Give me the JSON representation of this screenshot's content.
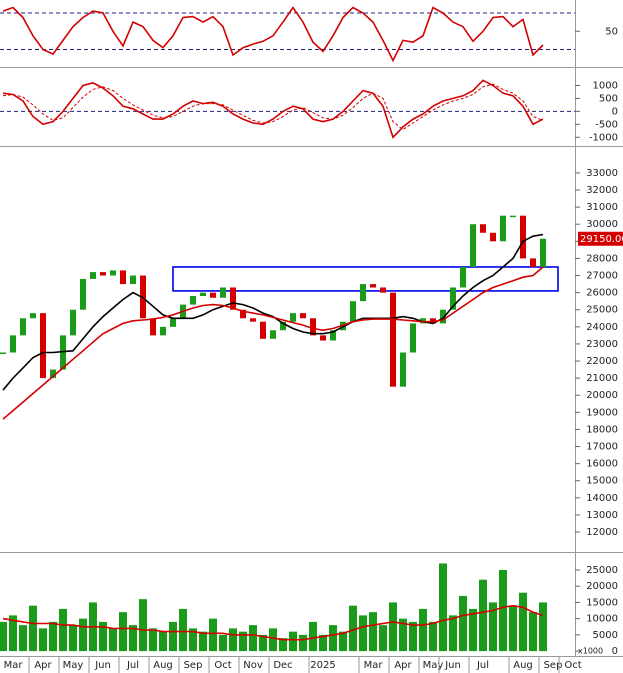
{
  "chart_data": [
    {
      "type": "line",
      "ylim": [
        12,
        82
      ],
      "yticks": [
        50
      ],
      "levels": [
        30,
        70
      ],
      "series": [
        {
          "color": "#d40000",
          "values": [
            72,
            76,
            65,
            45,
            30,
            25,
            40,
            55,
            65,
            72,
            70,
            50,
            34,
            60,
            55,
            40,
            32,
            45,
            65,
            66,
            60,
            66,
            55,
            24,
            32,
            36,
            39,
            45,
            60,
            76,
            60,
            38,
            28,
            45,
            65,
            76,
            70,
            60,
            40,
            18,
            40,
            38,
            45,
            76,
            70,
            60,
            55,
            39,
            50,
            65,
            66,
            55,
            63,
            24,
            35,
            null,
            null,
            null
          ]
        }
      ]
    },
    {
      "type": "line",
      "ylim": [
        -1260,
        1520
      ],
      "yticks": [
        1000,
        500,
        0,
        -500,
        -1000
      ],
      "levels": [
        0
      ],
      "series": [
        {
          "color": "#d40000",
          "values": [
            700,
            650,
            400,
            -200,
            -500,
            -400,
            0,
            500,
            1000,
            1100,
            900,
            600,
            200,
            100,
            -100,
            -300,
            -300,
            -100,
            200,
            400,
            300,
            350,
            200,
            -100,
            -300,
            -450,
            -500,
            -300,
            0,
            200,
            100,
            -300,
            -400,
            -300,
            0,
            400,
            800,
            700,
            200,
            -1000,
            -600,
            -300,
            -100,
            200,
            400,
            500,
            600,
            800,
            1200,
            1000,
            700,
            600,
            200,
            -500,
            -300,
            null,
            null,
            null
          ]
        },
        {
          "color": "#d40000",
          "dash": true,
          "values": [
            600,
            650,
            550,
            250,
            -100,
            -350,
            -250,
            150,
            550,
            850,
            950,
            800,
            500,
            250,
            50,
            -150,
            -250,
            -200,
            0,
            200,
            300,
            300,
            250,
            50,
            -150,
            -350,
            -450,
            -400,
            -200,
            50,
            150,
            -50,
            -250,
            -300,
            -150,
            150,
            500,
            700,
            500,
            -400,
            -700,
            -450,
            -200,
            50,
            250,
            400,
            500,
            650,
            950,
            1050,
            850,
            700,
            400,
            -200,
            -350,
            null,
            null,
            null
          ]
        }
      ]
    },
    {
      "type": "candlestick",
      "ylim": [
        10950,
        34340
      ],
      "yticks": [
        12000,
        13000,
        14000,
        15000,
        16000,
        17000,
        18000,
        19000,
        20000,
        21000,
        22000,
        23000,
        24000,
        25000,
        26000,
        27000,
        28000,
        29000,
        30000,
        31000,
        32000,
        33000
      ],
      "up_color": "#1a9c1a",
      "down_color": "#d40000",
      "values": [
        22500,
        23500,
        24500,
        24800,
        21000,
        21500,
        23500,
        25000,
        26800,
        27200,
        27000,
        27300,
        26500,
        27000,
        24500,
        23500,
        24000,
        24500,
        25300,
        25800,
        26000,
        25700,
        26300,
        25000,
        24500,
        24300,
        23300,
        23800,
        24300,
        24800,
        24500,
        23500,
        23200,
        23800,
        24300,
        25500,
        26500,
        26300,
        26000,
        20500,
        22500,
        24200,
        24500,
        24200,
        25000,
        26300,
        27500,
        30000,
        29500,
        29000,
        30500,
        30500,
        28000,
        27500,
        29150,
        null,
        null,
        null
      ],
      "series": [
        {
          "color": "#000000",
          "values": [
            20300,
            21000,
            21600,
            22200,
            22500,
            22500,
            22550,
            22600,
            23300,
            24000,
            24600,
            25100,
            25600,
            26000,
            25700,
            25200,
            24700,
            24500,
            24500,
            24500,
            24700,
            25000,
            25200,
            25400,
            25300,
            25100,
            24800,
            24600,
            24200,
            23900,
            23700,
            23600,
            23600,
            23700,
            24000,
            24300,
            24500,
            24500,
            24500,
            24500,
            24600,
            24500,
            24300,
            24200,
            24500,
            25200,
            25800,
            26300,
            26700,
            27000,
            27500,
            28000,
            29000,
            29300,
            29400,
            null,
            null,
            null
          ]
        },
        {
          "color": "#d40000",
          "values": [
            18600,
            19100,
            19600,
            20100,
            20600,
            21100,
            21600,
            22100,
            22600,
            23100,
            23600,
            23900,
            24200,
            24350,
            24400,
            24450,
            24550,
            24700,
            24900,
            25100,
            25250,
            25300,
            25250,
            25100,
            24900,
            24800,
            24700,
            24550,
            24400,
            24250,
            24100,
            23900,
            23800,
            23900,
            24100,
            24300,
            24400,
            24450,
            24450,
            24450,
            24400,
            24350,
            24300,
            24300,
            24400,
            24800,
            25200,
            25600,
            26000,
            26300,
            26500,
            26700,
            26900,
            27000,
            27500,
            null,
            null,
            null
          ]
        }
      ],
      "zone": {
        "low": 26100,
        "high": 27500,
        "start_index": 17,
        "end_index": 55.5,
        "color": "#0000ee"
      },
      "last_label": {
        "value": 29150,
        "label": "29150.00"
      }
    },
    {
      "type": "bar",
      "ylim": [
        -1200,
        29300
      ],
      "yticks": [
        0,
        5000,
        10000,
        15000,
        20000,
        25000
      ],
      "unit_label": "x1000",
      "categories": [
        null,
        "Mar",
        null,
        null,
        "Apr",
        null,
        null,
        "May",
        null,
        null,
        "Jun",
        null,
        null,
        "Jul",
        null,
        null,
        "Aug",
        null,
        null,
        "Sep",
        null,
        null,
        "Oct",
        null,
        null,
        "Nov",
        null,
        null,
        "Dec",
        null,
        null,
        null,
        "2025",
        null,
        null,
        null,
        null,
        "Mar",
        null,
        null,
        "Apr",
        null,
        null,
        "May",
        null,
        "Jun",
        null,
        null,
        "Jul",
        null,
        null,
        null,
        "Aug",
        null,
        null,
        "Sep",
        null,
        "Oct"
      ],
      "series": [
        {
          "color": "#1a9c1a",
          "values": [
            9000,
            11000,
            8000,
            14000,
            7000,
            9000,
            13000,
            8000,
            10000,
            15000,
            9000,
            7000,
            12000,
            8000,
            16000,
            7000,
            6000,
            9000,
            13000,
            7000,
            6000,
            10000,
            5000,
            7000,
            6000,
            8000,
            5000,
            7000,
            4000,
            6000,
            5000,
            9000,
            5000,
            8000,
            6000,
            14000,
            11000,
            12000,
            8000,
            15000,
            10000,
            9000,
            13000,
            9000,
            27000,
            11000,
            17000,
            13000,
            22000,
            15000,
            25000,
            14000,
            18000,
            12000,
            15000,
            null,
            null,
            null
          ]
        },
        {
          "type": "line",
          "color": "#d40000",
          "values": [
            10000,
            9500,
            9000,
            8500,
            8500,
            8500,
            8000,
            8000,
            7500,
            7500,
            7500,
            7000,
            7000,
            7000,
            6500,
            6500,
            6000,
            6000,
            6000,
            6000,
            5500,
            5500,
            5500,
            5000,
            5000,
            5000,
            4500,
            4000,
            3500,
            3500,
            3500,
            4000,
            4500,
            5000,
            5500,
            6500,
            7500,
            8000,
            8500,
            9000,
            8500,
            8000,
            8000,
            8500,
            9500,
            10000,
            11000,
            11500,
            12000,
            12500,
            13500,
            14000,
            13500,
            12000,
            11000,
            null,
            null,
            null
          ]
        }
      ]
    }
  ]
}
